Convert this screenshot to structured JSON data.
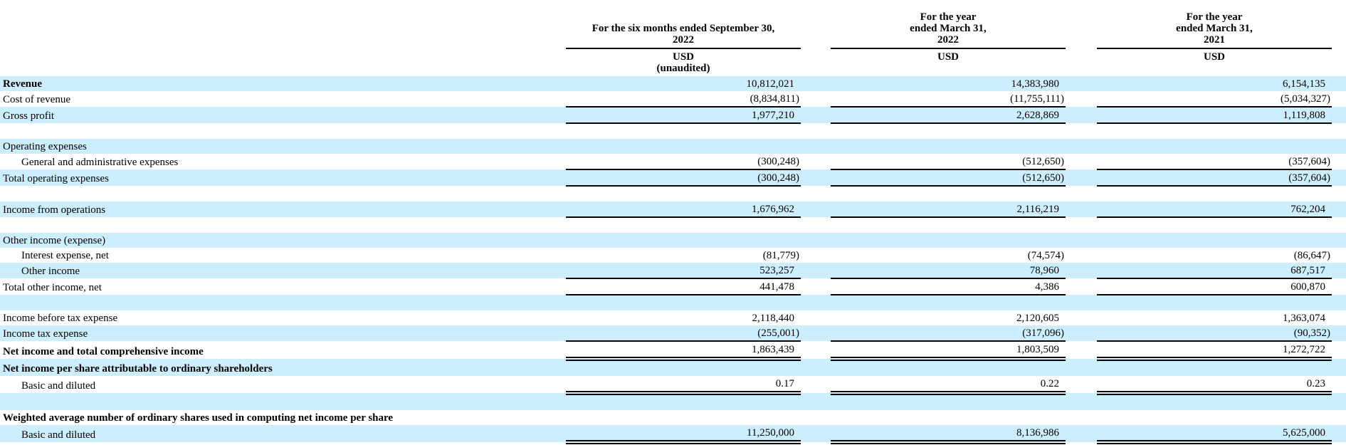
{
  "colors": {
    "row_stripe": "#cceeff",
    "rule": "#000000",
    "text": "#000000",
    "background": "#ffffff"
  },
  "table": {
    "columns": [
      {
        "period_lines": [
          "For the six months ended September 30,",
          "2022"
        ],
        "unit": "USD",
        "note": "(unaudited)"
      },
      {
        "period_lines": [
          "For the year",
          "ended March 31,",
          "2022"
        ],
        "unit": "USD",
        "note": ""
      },
      {
        "period_lines": [
          "For the year",
          "ended March 31,",
          "2021"
        ],
        "unit": "USD",
        "note": ""
      }
    ],
    "rows": [
      {
        "label": "Revenue",
        "bold": true,
        "indent": false,
        "shade": true,
        "rule": "none",
        "values": [
          "10,812,021",
          "14,383,980",
          "6,154,135"
        ]
      },
      {
        "label": "Cost of revenue",
        "bold": false,
        "indent": false,
        "shade": false,
        "rule": "none",
        "values": [
          "(8,834,811)",
          "(11,755,111)",
          "(5,034,327)"
        ]
      },
      {
        "label": "Gross profit",
        "bold": false,
        "indent": false,
        "shade": true,
        "rule": "topbot",
        "values": [
          "1,977,210",
          "2,628,869",
          "1,119,808"
        ]
      },
      {
        "label": "",
        "bold": false,
        "indent": false,
        "shade": false,
        "rule": "none",
        "values": []
      },
      {
        "label": "Operating expenses",
        "bold": false,
        "indent": false,
        "shade": true,
        "rule": "none",
        "values": []
      },
      {
        "label": "General and administrative expenses",
        "bold": false,
        "indent": true,
        "shade": false,
        "rule": "none",
        "values": [
          "(300,248)",
          "(512,650)",
          "(357,604)"
        ]
      },
      {
        "label": "Total operating expenses",
        "bold": false,
        "indent": false,
        "shade": true,
        "rule": "topbot",
        "values": [
          "(300,248)",
          "(512,650)",
          "(357,604)"
        ]
      },
      {
        "label": "",
        "bold": false,
        "indent": false,
        "shade": false,
        "rule": "none",
        "values": []
      },
      {
        "label": "Income from operations",
        "bold": false,
        "indent": false,
        "shade": true,
        "rule": "bottom",
        "values": [
          "1,676,962",
          "2,116,219",
          "762,204"
        ]
      },
      {
        "label": "",
        "bold": false,
        "indent": false,
        "shade": false,
        "rule": "none",
        "values": []
      },
      {
        "label": "Other income (expense)",
        "bold": false,
        "indent": false,
        "shade": true,
        "rule": "none",
        "values": []
      },
      {
        "label": "Interest expense, net",
        "bold": false,
        "indent": true,
        "shade": false,
        "rule": "none",
        "values": [
          "(81,779)",
          "(74,574)",
          "(86,647)"
        ]
      },
      {
        "label": "Other income",
        "bold": false,
        "indent": true,
        "shade": true,
        "rule": "none",
        "values": [
          "523,257",
          "78,960",
          "687,517"
        ]
      },
      {
        "label": "Total other income, net",
        "bold": false,
        "indent": false,
        "shade": false,
        "rule": "topbot",
        "values": [
          "441,478",
          "4,386",
          "600,870"
        ]
      },
      {
        "label": "",
        "bold": false,
        "indent": false,
        "shade": true,
        "rule": "none",
        "values": []
      },
      {
        "label": "Income before tax expense",
        "bold": false,
        "indent": false,
        "shade": false,
        "rule": "none",
        "values": [
          "2,118,440",
          "2,120,605",
          "1,363,074"
        ]
      },
      {
        "label": "Income tax expense",
        "bold": false,
        "indent": false,
        "shade": true,
        "rule": "none",
        "values": [
          "(255,001)",
          "(317,096)",
          "(90,352)"
        ]
      },
      {
        "label": "Net income and total comprehensive income",
        "bold": true,
        "indent": false,
        "shade": false,
        "rule": "topdbl",
        "values": [
          "1,863,439",
          "1,803,509",
          "1,272,722"
        ]
      },
      {
        "label": "Net income per share attributable to ordinary shareholders",
        "bold": true,
        "indent": false,
        "shade": true,
        "rule": "none",
        "values": []
      },
      {
        "label": "Basic and diluted",
        "bold": false,
        "indent": true,
        "shade": false,
        "rule": "dbl",
        "values": [
          "0.17",
          "0.22",
          "0.23"
        ]
      },
      {
        "label": "",
        "bold": false,
        "indent": false,
        "shade": true,
        "rule": "none",
        "values": []
      },
      {
        "label": "Weighted average number of ordinary shares used in computing net income per share",
        "bold": true,
        "indent": false,
        "shade": false,
        "rule": "none",
        "values": []
      },
      {
        "label": "Basic and diluted",
        "bold": false,
        "indent": true,
        "shade": true,
        "rule": "dbl",
        "values": [
          "11,250,000",
          "8,136,986",
          "5,625,000"
        ]
      }
    ]
  }
}
